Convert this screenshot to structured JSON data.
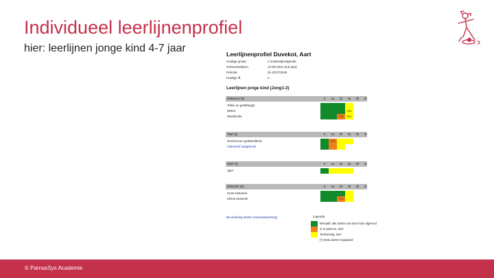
{
  "slide": {
    "title": "Individueel leerlijnenprofiel",
    "subtitle": "hier: leerlijnen jonge kind 4-7 jaar",
    "footer": "© ParnasSys Academie"
  },
  "colors": {
    "accent": "#c4314b",
    "green": "#118a2a",
    "orange": "#ef7f1a",
    "yellow": "#ffff00",
    "header_gray": "#b9b9b9"
  },
  "document": {
    "title": "Leerlijnenprofiel Duvekot, Aart",
    "meta": [
      {
        "label": "Huidige groep",
        "value": "2 onderwijsvolgende"
      },
      {
        "label": "Geboortedatum",
        "value": "13-06-2011 (5;6 jaar)"
      },
      {
        "label": "Periode",
        "value": "01-2017/2018"
      },
      {
        "label": "Huidige lft",
        "value": "n"
      }
    ],
    "section": "Leerlijnen jonge kind (Jong1-2)",
    "columns": [
      "0",
      "1a",
      "1b",
      "2a",
      "2b",
      "2c"
    ],
    "blocks": [
      {
        "header": "Rekenen (5)",
        "rows": [
          {
            "label": "Tellen en getalbegrip",
            "cells": [
              {
                "c": "g",
                "t": ""
              },
              {
                "c": "g",
                "t": ""
              },
              {
                "c": "g",
                "t": ""
              },
              {
                "c": "y",
                "t": ""
              },
              {
                "c": "",
                "t": ""
              },
              {
                "c": "",
                "t": ""
              }
            ]
          },
          {
            "label": "Meten",
            "cells": [
              {
                "c": "g",
                "t": ""
              },
              {
                "c": "g",
                "t": ""
              },
              {
                "c": "g",
                "t": ""
              },
              {
                "c": "y",
                "t": "18%"
              },
              {
                "c": "",
                "t": ""
              },
              {
                "c": "",
                "t": ""
              }
            ]
          },
          {
            "label": "Meetkunde",
            "cells": [
              {
                "c": "g",
                "t": ""
              },
              {
                "c": "g",
                "t": ""
              },
              {
                "c": "o",
                "t": "17%"
              },
              {
                "c": "y",
                "t": "25%"
              },
              {
                "c": "",
                "t": ""
              },
              {
                "c": "",
                "t": ""
              }
            ]
          }
        ]
      },
      {
        "header": "Taal (4)",
        "rows": [
          {
            "label": "Geschreven geletterdheid",
            "cells": [
              {
                "c": "g",
                "t": ""
              },
              {
                "c": "o",
                "t": "24%"
              },
              {
                "c": "y",
                "t": ""
              },
              {
                "c": "y",
                "t": ""
              },
              {
                "c": "",
                "t": ""
              },
              {
                "c": "",
                "t": ""
              }
            ]
          },
          {
            "label": "Interactief taalgebruik",
            "blue": true,
            "cells": [
              {
                "c": "g",
                "t": ""
              },
              {
                "c": "o",
                "t": ""
              },
              {
                "c": "y",
                "t": ""
              },
              {
                "c": "",
                "t": ""
              },
              {
                "c": "",
                "t": ""
              },
              {
                "c": "",
                "t": ""
              }
            ]
          }
        ]
      },
      {
        "header": "Spel (4)",
        "rows": [
          {
            "label": "Spel",
            "cells": [
              {
                "c": "g",
                "t": ""
              },
              {
                "c": "y",
                "t": ""
              },
              {
                "c": "y",
                "t": ""
              },
              {
                "c": "y",
                "t": ""
              },
              {
                "c": "",
                "t": ""
              },
              {
                "c": "",
                "t": ""
              }
            ]
          }
        ]
      },
      {
        "header": "Motoriek (5)",
        "rows": [
          {
            "label": "Grote Motoriek",
            "cells": [
              {
                "c": "g",
                "t": ""
              },
              {
                "c": "g",
                "t": ""
              },
              {
                "c": "g",
                "t": ""
              },
              {
                "c": "y",
                "t": ""
              },
              {
                "c": "",
                "t": ""
              },
              {
                "c": "",
                "t": ""
              }
            ]
          },
          {
            "label": "Kleine Motoriek",
            "cells": [
              {
                "c": "g",
                "t": ""
              },
              {
                "c": "g",
                "t": ""
              },
              {
                "c": "o",
                "t": "27%"
              },
              {
                "c": "y",
                "t": ""
              },
              {
                "c": "",
                "t": ""
              },
              {
                "c": "",
                "t": ""
              }
            ]
          }
        ]
      }
    ],
    "legend_label": "Beoordeling doelen (niveaubeperking)",
    "legend": {
      "title": "Legenda",
      "items": [
        {
          "c": "g",
          "text": "Behaald: alle doelen van deze fase afgerond"
        },
        {
          "c": "o",
          "text": "In te plannen, doel"
        },
        {
          "c": "y",
          "text": "Toekomstig, doel"
        },
        {
          "c": "",
          "text": "(*) Extra doelen ingepland"
        }
      ]
    }
  }
}
